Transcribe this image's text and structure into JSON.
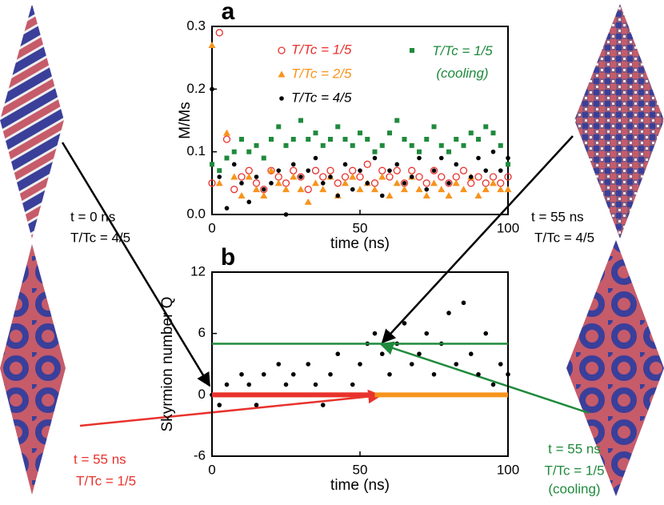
{
  "chart_data": [
    {
      "type": "scatter",
      "panel": "a",
      "x_label": "time (ns)",
      "y_label": "M/Ms",
      "xlim": [
        0,
        100
      ],
      "xticks": [
        0,
        50,
        100
      ],
      "ylim": [
        0,
        0.3
      ],
      "yticks": [
        {
          "value": 0,
          "label": "0.0"
        },
        0.1,
        0.2,
        0.3
      ],
      "x": [
        0,
        2.5,
        5,
        7.5,
        10,
        12.5,
        15,
        17.5,
        20,
        22.5,
        25,
        27.5,
        30,
        32.5,
        35,
        37.5,
        40,
        42.5,
        45,
        47.5,
        50,
        52.5,
        55,
        57.5,
        60,
        62.5,
        65,
        67.5,
        70,
        72.5,
        75,
        77.5,
        80,
        82.5,
        85,
        87.5,
        90,
        92.5,
        95,
        97.5,
        100
      ],
      "series": [
        {
          "name": "T/Tc = 1/5",
          "color": "#e8322d",
          "marker": "open-circle",
          "values": [
            0.05,
            0.29,
            0.12,
            0.04,
            0.06,
            0.07,
            0.05,
            0.04,
            0.07,
            0.06,
            0.05,
            0.07,
            0.06,
            0.04,
            0.07,
            0.06,
            0.07,
            0.05,
            0.06,
            0.07,
            0.06,
            0.08,
            0.05,
            0.07,
            0.06,
            0.07,
            0.05,
            0.07,
            0.06,
            0.05,
            0.07,
            0.06,
            0.05,
            0.06,
            0.07,
            0.05,
            0.06,
            0.05,
            0.06,
            0.05,
            0.06
          ]
        },
        {
          "name": "T/Tc = 2/5",
          "color": "#f7941d",
          "marker": "triangle",
          "values": [
            0.27,
            0.05,
            0.13,
            0.06,
            0.03,
            0.06,
            0.04,
            0.03,
            0.07,
            0.05,
            0.04,
            0.06,
            0.04,
            0.02,
            0.05,
            0.04,
            0.06,
            0.03,
            0.05,
            0.06,
            0.04,
            0.05,
            0.04,
            0.06,
            0.03,
            0.05,
            0.04,
            0.06,
            0.04,
            0.03,
            0.05,
            0.04,
            0.03,
            0.05,
            0.04,
            0.06,
            0.03,
            0.04,
            0.05,
            0.04,
            0.04
          ]
        },
        {
          "name": "T/Tc = 4/5",
          "color": "#000000",
          "marker": "dot",
          "values": [
            0.2,
            0.06,
            0.01,
            0.08,
            0.05,
            0.02,
            0.06,
            0.04,
            0.05,
            0.07,
            0,
            0.08,
            0.06,
            0.07,
            0.09,
            0.05,
            0.06,
            0.03,
            0.08,
            0.04,
            0.07,
            0.05,
            0.09,
            0.03,
            0.07,
            0.08,
            0.05,
            0.06,
            0.09,
            0.04,
            0.07,
            0.09,
            0.05,
            0.08,
            0.11,
            0.06,
            0.09,
            0.07,
            0.1,
            0.07,
            0.09
          ]
        },
        {
          "name": "T/Tc = 1/5 (cooling)",
          "color": "#1f8a3c",
          "marker": "square",
          "values": [
            0.08,
            0.07,
            0.09,
            0.1,
            0.12,
            0.1,
            0.11,
            0.09,
            0.12,
            0.14,
            0.11,
            0.12,
            0.15,
            0.12,
            0.13,
            0.11,
            0.12,
            0.14,
            0.12,
            0.11,
            0.13,
            0.12,
            0.1,
            0.11,
            0.13,
            0.15,
            0.12,
            0.11,
            0.1,
            0.12,
            0.14,
            0.11,
            0.1,
            0.12,
            0.11,
            0.13,
            0.12,
            0.14,
            0.13,
            0.11,
            0.08
          ]
        }
      ]
    },
    {
      "type": "scatter",
      "panel": "b",
      "x_label": "time (ns)",
      "y_label": "Skyrmion number Q",
      "xlim": [
        0,
        100
      ],
      "xticks": [
        0,
        50,
        100
      ],
      "ylim": [
        -6,
        12
      ],
      "yticks": [
        -6,
        0,
        6,
        12
      ],
      "series": [
        {
          "color": "#000000",
          "marker": "dot",
          "x": [
            0,
            2.5,
            5,
            7.5,
            10,
            12.5,
            15,
            17.5,
            20,
            22.5,
            25,
            27.5,
            30,
            32.5,
            35,
            37.5,
            40,
            42.5,
            45,
            47.5,
            50,
            52.5,
            55,
            57.5,
            60,
            62.5,
            65,
            67.5,
            70,
            72.5,
            75,
            77.5,
            80,
            82.5,
            85,
            87.5,
            90,
            92.5,
            95,
            97.5,
            100
          ],
          "values": [
            0,
            -1,
            1,
            0,
            2,
            1,
            -1,
            2,
            0,
            3,
            1,
            2,
            0,
            3,
            1,
            -1,
            2,
            4,
            0,
            1,
            3,
            5,
            6,
            4,
            2,
            5,
            7,
            3,
            4,
            6,
            2,
            5,
            8,
            3,
            9,
            4,
            2,
            6,
            1,
            3,
            2
          ]
        },
        {
          "color": "#f7941d",
          "marker": "line",
          "x": [
            0,
            100
          ],
          "values": [
            0,
            0
          ]
        },
        {
          "color": "#e8322d",
          "marker": "line",
          "x": [
            0,
            55
          ],
          "values": [
            0,
            0
          ]
        },
        {
          "color": "#1f8a3c",
          "marker": "line",
          "x": [
            0,
            100
          ],
          "values": [
            5,
            5
          ]
        }
      ]
    }
  ],
  "annotations": [
    "t = 0 ns",
    "T/Tc = 4/5",
    "t = 55 ns",
    "T/Tc = 1/5",
    "t = 55 ns",
    "T/Tc = 4/5",
    "t = 55 ns",
    "T/Tc = 1/5",
    "(cooling)"
  ]
}
